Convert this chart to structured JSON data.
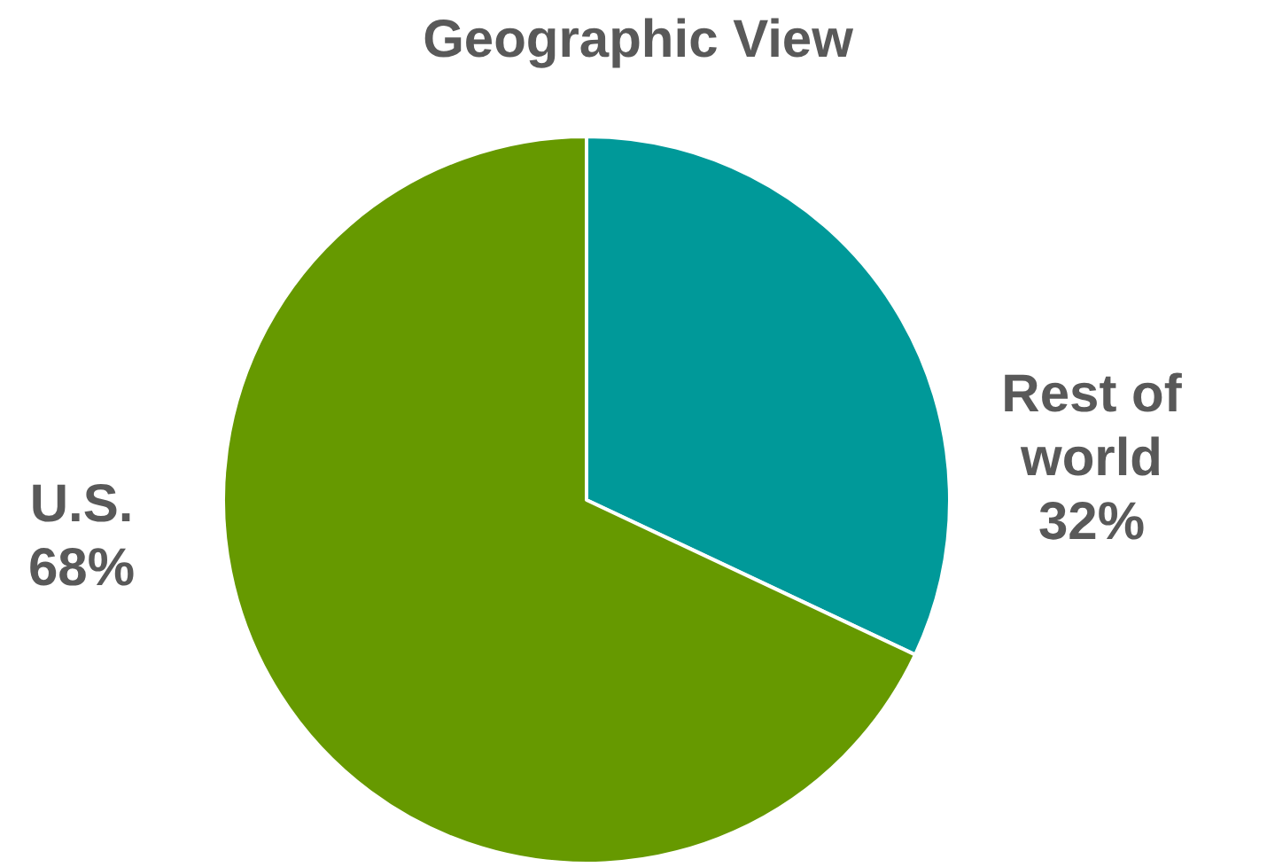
{
  "chart_data": {
    "type": "pie",
    "title": "Geographic View",
    "categories": [
      "Rest of world",
      "U.S."
    ],
    "values": [
      32,
      68
    ],
    "colors": [
      "#009999",
      "#669900"
    ],
    "value_labels": [
      "32%",
      "68%"
    ]
  }
}
